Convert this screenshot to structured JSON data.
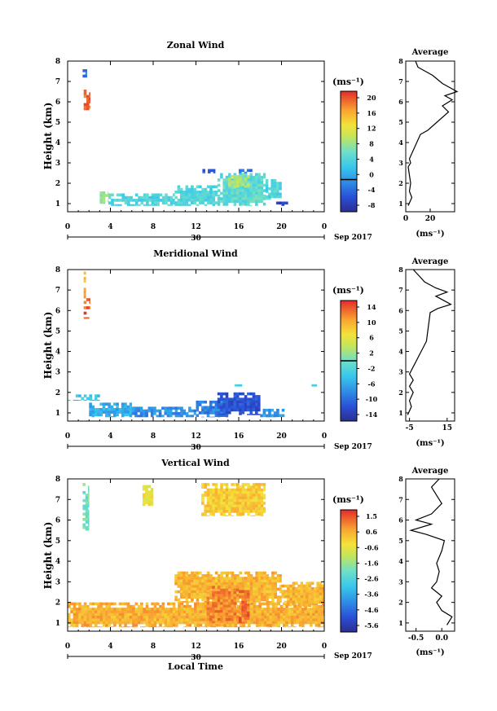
{
  "chart_data": [
    {
      "type": "heatmap",
      "title": "Zonal Wind",
      "ylabel": "Height (km)",
      "xlabel": "",
      "x_ticks": [
        "0",
        "4",
        "8",
        "12",
        "16",
        "20",
        "0"
      ],
      "y_ticks": [
        "1",
        "2",
        "3",
        "4",
        "5",
        "6",
        "7",
        "8"
      ],
      "xlim": [
        0,
        24
      ],
      "ylim": [
        0.6,
        8
      ],
      "date_label": "30",
      "month_label": "Sep 2017",
      "colorbar": {
        "unit": "(ms⁻¹)",
        "range": [
          -8,
          22
        ],
        "ticks": [
          "20",
          "16",
          "12",
          "8",
          "4",
          "0",
          "-4",
          "-8"
        ],
        "zero_line": 0
      },
      "regions": [
        {
          "t0": 1.5,
          "t1": 2.1,
          "h0": 5.6,
          "h1": 6.6,
          "value": 20
        },
        {
          "t0": 1.4,
          "t1": 1.8,
          "h0": 7.2,
          "h1": 7.6,
          "value": -2
        },
        {
          "t0": 3.0,
          "t1": 3.8,
          "h0": 1.0,
          "h1": 1.6,
          "value": 9
        },
        {
          "t0": 3.8,
          "t1": 10.0,
          "h0": 0.9,
          "h1": 1.5,
          "value": 5
        },
        {
          "t0": 10.0,
          "t1": 14.0,
          "h0": 0.9,
          "h1": 1.9,
          "value": 5
        },
        {
          "t0": 14.0,
          "t1": 18.5,
          "h0": 0.9,
          "h1": 2.5,
          "value": 6
        },
        {
          "t0": 15.0,
          "t1": 17.0,
          "h0": 1.8,
          "h1": 2.4,
          "value": 10
        },
        {
          "t0": 18.5,
          "t1": 20.0,
          "h0": 1.2,
          "h1": 2.2,
          "value": 5
        },
        {
          "t0": 12.6,
          "t1": 13.8,
          "h0": 2.5,
          "h1": 2.7,
          "value": -3
        },
        {
          "t0": 16.0,
          "t1": 17.4,
          "h0": 2.5,
          "h1": 2.7,
          "value": -2
        },
        {
          "t0": 19.5,
          "t1": 20.6,
          "h0": 0.9,
          "h1": 1.1,
          "value": -5
        }
      ],
      "average": {
        "title": "Average",
        "x_ticks": [
          "0",
          "20"
        ],
        "xlim": [
          0,
          40
        ],
        "unit": "(ms⁻¹)",
        "profile": [
          [
            2,
            0.9
          ],
          [
            5,
            1.3
          ],
          [
            3,
            1.6
          ],
          [
            4,
            2.0
          ],
          [
            3,
            2.4
          ],
          [
            2,
            2.8
          ],
          [
            4,
            3.0
          ],
          [
            3,
            3.2
          ],
          [
            12,
            4.4
          ],
          [
            18,
            4.6
          ],
          [
            35,
            5.5
          ],
          [
            30,
            5.8
          ],
          [
            38,
            6.1
          ],
          [
            32,
            6.3
          ],
          [
            42,
            6.5
          ],
          [
            36,
            6.7
          ],
          [
            30,
            6.9
          ],
          [
            26,
            7.1
          ],
          [
            22,
            7.3
          ],
          [
            16,
            7.5
          ],
          [
            10,
            7.7
          ],
          [
            8,
            8.0
          ]
        ]
      }
    },
    {
      "type": "heatmap",
      "title": "Meridional Wind",
      "ylabel": "Height (km)",
      "xlabel": "",
      "x_ticks": [
        "0",
        "4",
        "8",
        "12",
        "16",
        "20",
        "0"
      ],
      "y_ticks": [
        "1",
        "2",
        "3",
        "4",
        "5",
        "6",
        "7",
        "8"
      ],
      "xlim": [
        0,
        24
      ],
      "ylim": [
        0.6,
        8
      ],
      "date_label": "30",
      "month_label": "Sep 2017",
      "colorbar": {
        "unit": "(ms⁻¹)",
        "range": [
          -16,
          16
        ],
        "ticks": [
          "14",
          "10",
          "6",
          "2",
          "-2",
          "-6",
          "-10",
          "-14"
        ],
        "zero_line": 0
      },
      "regions": [
        {
          "t0": 1.5,
          "t1": 2.1,
          "h0": 5.6,
          "h1": 6.6,
          "value": 14
        },
        {
          "t0": 1.5,
          "t1": 1.7,
          "h0": 6.6,
          "h1": 7.9,
          "value": 10
        },
        {
          "t0": 0.0,
          "t1": 3.0,
          "h0": 1.6,
          "h1": 1.9,
          "value": -4
        },
        {
          "t0": 2.0,
          "t1": 6.0,
          "h0": 0.8,
          "h1": 1.5,
          "value": -6
        },
        {
          "t0": 6.0,
          "t1": 12.0,
          "h0": 0.8,
          "h1": 1.3,
          "value": -8
        },
        {
          "t0": 12.0,
          "t1": 15.0,
          "h0": 0.8,
          "h1": 1.6,
          "value": -9
        },
        {
          "t0": 14.0,
          "t1": 18.0,
          "h0": 0.9,
          "h1": 2.0,
          "value": -12
        },
        {
          "t0": 18.0,
          "t1": 20.5,
          "h0": 0.8,
          "h1": 1.2,
          "value": -7
        },
        {
          "t0": 15.6,
          "t1": 16.3,
          "h0": 2.3,
          "h1": 2.4,
          "value": -3
        },
        {
          "t0": 22.8,
          "t1": 23.3,
          "h0": 2.3,
          "h1": 2.4,
          "value": -2
        }
      ],
      "average": {
        "title": "Average",
        "x_ticks": [
          "-5",
          "15"
        ],
        "xlim": [
          -7,
          19
        ],
        "unit": "(ms⁻¹)",
        "profile": [
          [
            -6,
            0.9
          ],
          [
            -4,
            1.3
          ],
          [
            -5,
            1.6
          ],
          [
            -3,
            2.0
          ],
          [
            -5,
            2.3
          ],
          [
            -3,
            2.6
          ],
          [
            -5,
            2.9
          ],
          [
            4,
            4.5
          ],
          [
            6,
            5.9
          ],
          [
            10,
            6.1
          ],
          [
            17,
            6.3
          ],
          [
            13,
            6.5
          ],
          [
            9,
            6.7
          ],
          [
            15,
            6.9
          ],
          [
            9,
            7.1
          ],
          [
            3,
            7.4
          ],
          [
            0,
            7.7
          ],
          [
            -3,
            8.0
          ]
        ]
      }
    },
    {
      "type": "heatmap",
      "title": "Vertical Wind",
      "ylabel": "Height (km)",
      "xlabel": "Local Time",
      "x_ticks": [
        "0",
        "4",
        "8",
        "12",
        "16",
        "20",
        "0"
      ],
      "y_ticks": [
        "1",
        "2",
        "3",
        "4",
        "5",
        "6",
        "7",
        "8"
      ],
      "xlim": [
        0,
        24
      ],
      "ylim": [
        0.6,
        8
      ],
      "date_label": "30",
      "month_label": "Sep 2017",
      "colorbar": {
        "unit": "(ms⁻¹)",
        "range": [
          -6.1,
          2.0
        ],
        "ticks": [
          "1.5",
          "0.6",
          "-0.6",
          "-1.6",
          "-2.6",
          "-3.6",
          "-4.6",
          "-5.6"
        ],
        "zero_line": null
      },
      "regions": [
        {
          "t0": 1.4,
          "t1": 2.0,
          "h0": 5.5,
          "h1": 7.8,
          "value": -2.0
        },
        {
          "t0": 7.0,
          "t1": 8.0,
          "h0": 6.7,
          "h1": 7.7,
          "value": -0.4
        },
        {
          "t0": 12.5,
          "t1": 18.5,
          "h0": 6.2,
          "h1": 7.8,
          "value": 0.1
        },
        {
          "t0": 0.0,
          "t1": 24.0,
          "h0": 0.8,
          "h1": 2.0,
          "value": 0.5
        },
        {
          "t0": 10.0,
          "t1": 20.0,
          "h0": 2.0,
          "h1": 3.5,
          "value": 0.4
        },
        {
          "t0": 13.0,
          "t1": 16.0,
          "h0": 1.0,
          "h1": 2.8,
          "value": 1.0
        },
        {
          "t0": 16.0,
          "t1": 17.0,
          "h0": 1.0,
          "h1": 2.6,
          "value": 1.3
        },
        {
          "t0": 20.0,
          "t1": 24.0,
          "h0": 1.8,
          "h1": 3.0,
          "value": 0.4
        }
      ],
      "average": {
        "title": "Average",
        "x_ticks": [
          "-0.5",
          "0.0"
        ],
        "xlim": [
          -0.7,
          0.25
        ],
        "unit": "(ms⁻¹)",
        "profile": [
          [
            0.1,
            0.9
          ],
          [
            0.2,
            1.3
          ],
          [
            0.0,
            1.6
          ],
          [
            -0.1,
            2.0
          ],
          [
            0.0,
            2.3
          ],
          [
            -0.2,
            2.7
          ],
          [
            -0.1,
            3.0
          ],
          [
            -0.05,
            3.5
          ],
          [
            -0.1,
            3.9
          ],
          [
            0.0,
            4.5
          ],
          [
            0.05,
            5.0
          ],
          [
            -0.3,
            5.3
          ],
          [
            -0.6,
            5.5
          ],
          [
            -0.2,
            5.8
          ],
          [
            -0.5,
            6.0
          ],
          [
            -0.2,
            6.3
          ],
          [
            0.0,
            6.8
          ],
          [
            -0.1,
            7.2
          ],
          [
            -0.2,
            7.6
          ],
          [
            -0.05,
            8.0
          ]
        ]
      }
    }
  ]
}
